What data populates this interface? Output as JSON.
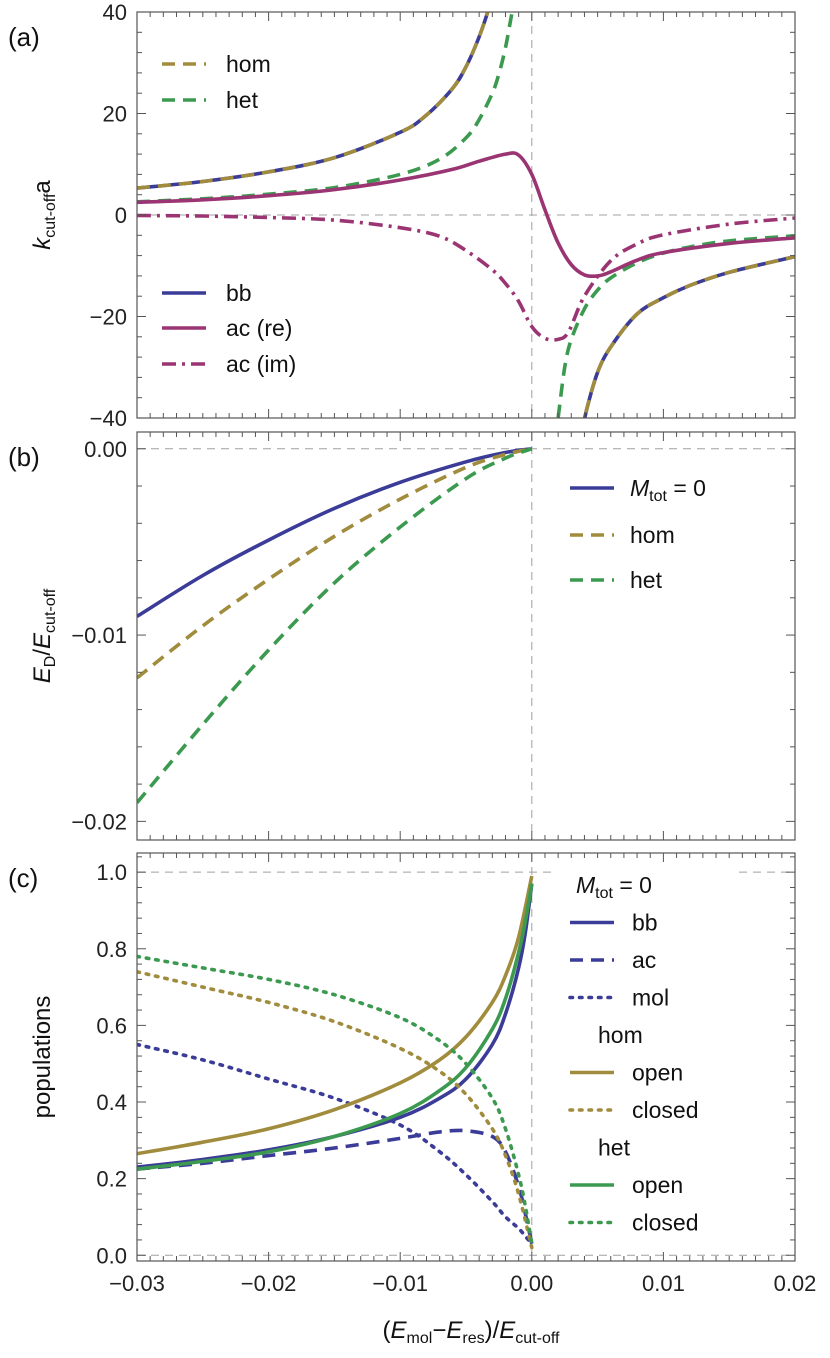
{
  "chart_data": [
    {
      "panel_label": "(a)",
      "type": "line",
      "ylabel": {
        "main": "k",
        "sub": "cut-off",
        "after": "a"
      },
      "xlim": [
        -0.03,
        0.02
      ],
      "ylim": [
        -40,
        40
      ],
      "yticks": [
        {
          "v": 40,
          "label": "40"
        },
        {
          "v": 20,
          "label": "20"
        },
        {
          "v": 0,
          "label": "0"
        },
        {
          "v": -20,
          "label": "−20"
        },
        {
          "v": -40,
          "label": "−40"
        }
      ],
      "ref_lines": {
        "x": 0,
        "y": 0
      },
      "legend": [
        {
          "label": "hom",
          "color": "#a08c3c",
          "dash": "dash"
        },
        {
          "label": "het",
          "color": "#3c9a50",
          "dash": "dash"
        },
        {
          "label": "bb",
          "color": "#3b3b98",
          "dash": "solid"
        },
        {
          "label": "ac (re)",
          "color": "#9b3472",
          "dash": "solid"
        },
        {
          "label": "ac (im)",
          "color": "#9b3472",
          "dash": "dashdot"
        }
      ],
      "series": [
        {
          "key": "bb",
          "color": "#3b3b98",
          "dash": "solid",
          "x": [
            -0.03,
            -0.025,
            -0.02,
            -0.015,
            -0.01,
            -0.008,
            -0.006,
            -0.005,
            -0.0042,
            -0.0036,
            -0.003
          ],
          "y": [
            5.3,
            6.6,
            8.5,
            11.3,
            16.3,
            19.7,
            25.0,
            29.2,
            33.8,
            38.0,
            43.0
          ]
        },
        {
          "key": "bb_pos",
          "color": "#3b3b98",
          "dash": "solid",
          "x": [
            0.0038,
            0.0042,
            0.005,
            0.006,
            0.008,
            0.01,
            0.012,
            0.015,
            0.02
          ],
          "y": [
            -43.0,
            -38.0,
            -31.0,
            -26.0,
            -19.5,
            -16.3,
            -13.9,
            -11.3,
            -8.2
          ]
        },
        {
          "key": "hom",
          "color": "#a08c3c",
          "dash": "dash",
          "x": [
            -0.03,
            -0.025,
            -0.02,
            -0.015,
            -0.01,
            -0.008,
            -0.006,
            -0.005,
            -0.0042,
            -0.0036,
            -0.003
          ],
          "y": [
            5.3,
            6.6,
            8.5,
            11.3,
            16.3,
            19.7,
            25.0,
            29.2,
            33.8,
            38.0,
            43.0
          ]
        },
        {
          "key": "hom_pos",
          "color": "#a08c3c",
          "dash": "dash",
          "x": [
            0.0038,
            0.0042,
            0.005,
            0.006,
            0.008,
            0.01,
            0.012,
            0.015,
            0.02
          ],
          "y": [
            -43.0,
            -38.0,
            -31.0,
            -26.0,
            -19.5,
            -16.3,
            -13.9,
            -11.3,
            -8.2
          ]
        },
        {
          "key": "het",
          "color": "#3c9a50",
          "dash": "dash",
          "x": [
            -0.03,
            -0.025,
            -0.02,
            -0.015,
            -0.01,
            -0.007,
            -0.005,
            -0.004,
            -0.003,
            -0.0025,
            -0.002,
            -0.0015,
            -0.0012
          ],
          "y": [
            2.6,
            3.2,
            4.1,
            5.4,
            8.0,
            11.0,
            15.2,
            18.8,
            24.0,
            27.8,
            33.0,
            40.0,
            44.0
          ]
        },
        {
          "key": "het_pos",
          "color": "#3c9a50",
          "dash": "dash",
          "x": [
            0.0018,
            0.002,
            0.0025,
            0.003,
            0.004,
            0.005,
            0.006,
            0.008,
            0.01,
            0.012,
            0.015,
            0.02
          ],
          "y": [
            -44.0,
            -40.0,
            -30.0,
            -24.5,
            -18.5,
            -14.8,
            -12.4,
            -9.4,
            -7.5,
            -6.3,
            -5.1,
            -4.1
          ]
        },
        {
          "key": "ac_re",
          "color": "#9b3472",
          "dash": "solid",
          "x": [
            -0.03,
            -0.025,
            -0.02,
            -0.015,
            -0.01,
            -0.006,
            -0.004,
            -0.002,
            -0.001,
            0.0,
            0.001,
            0.002,
            0.003,
            0.004,
            0.005,
            0.006,
            0.008,
            0.01,
            0.015,
            0.02
          ],
          "y": [
            2.5,
            3.0,
            3.8,
            5.0,
            6.9,
            9.0,
            10.6,
            12.0,
            11.8,
            8.0,
            1.0,
            -5.5,
            -9.8,
            -11.8,
            -12.0,
            -11.2,
            -8.9,
            -7.4,
            -5.6,
            -4.5
          ]
        },
        {
          "key": "ac_im",
          "color": "#9b3472",
          "dash": "dashdot",
          "x": [
            -0.03,
            -0.025,
            -0.02,
            -0.015,
            -0.01,
            -0.007,
            -0.005,
            -0.003,
            -0.002,
            -0.001,
            0.0,
            0.001,
            0.002,
            0.0028,
            0.004,
            0.006,
            0.008,
            0.01,
            0.015,
            0.02
          ],
          "y": [
            -0.1,
            -0.2,
            -0.5,
            -1.0,
            -2.5,
            -4.2,
            -7.0,
            -10.8,
            -13.5,
            -17.0,
            -22.0,
            -24.3,
            -24.5,
            -23.0,
            -16.0,
            -9.0,
            -5.7,
            -3.9,
            -1.8,
            -0.6
          ]
        }
      ]
    },
    {
      "panel_label": "(b)",
      "type": "line",
      "ylabel": {
        "main": "E",
        "sub": "D",
        "after": "/E",
        "sub2": "cut-off"
      },
      "xlim": [
        -0.03,
        0.02
      ],
      "ylim": [
        -0.021,
        0.0009
      ],
      "yticks": [
        {
          "v": 0.0,
          "label": "0.00"
        },
        {
          "v": -0.01,
          "label": "−0.01"
        },
        {
          "v": -0.02,
          "label": "−0.02"
        }
      ],
      "ref_lines": {
        "x": 0,
        "y": 0
      },
      "legend": [
        {
          "label": "M",
          "sub": "tot",
          "suffix": " = 0",
          "color": "#3b3b98",
          "dash": "solid"
        },
        {
          "label": "hom",
          "color": "#a08c3c",
          "dash": "dash"
        },
        {
          "label": "het",
          "color": "#3c9a50",
          "dash": "dash"
        }
      ],
      "series": [
        {
          "key": "bb",
          "color": "#3b3b98",
          "dash": "solid",
          "x": [
            -0.03,
            -0.025,
            -0.02,
            -0.015,
            -0.01,
            -0.005,
            -0.002,
            0.0
          ],
          "y": [
            -0.009,
            -0.0068,
            -0.0049,
            -0.0032,
            -0.0018,
            -0.0007,
            -0.0002,
            0.0
          ]
        },
        {
          "key": "hom",
          "color": "#a08c3c",
          "dash": "dash",
          "x": [
            -0.03,
            -0.025,
            -0.02,
            -0.015,
            -0.01,
            -0.005,
            -0.002,
            0.0
          ],
          "y": [
            -0.0123,
            -0.0095,
            -0.007,
            -0.0047,
            -0.0027,
            -0.001,
            -0.0003,
            0.0
          ]
        },
        {
          "key": "het",
          "color": "#3c9a50",
          "dash": "dash",
          "x": [
            -0.03,
            -0.025,
            -0.02,
            -0.015,
            -0.01,
            -0.005,
            -0.002,
            0.0
          ],
          "y": [
            -0.019,
            -0.0148,
            -0.0108,
            -0.0072,
            -0.0042,
            -0.0016,
            -0.0005,
            0.0
          ]
        }
      ]
    },
    {
      "panel_label": "(c)",
      "type": "line",
      "ylabel": {
        "main": "populations"
      },
      "xlabel": {
        "a": "(E",
        "sub1": "mol",
        "b": "−E",
        "sub2": "res",
        "c": ")/E",
        "sub3": "cut-off"
      },
      "xlim": [
        -0.03,
        0.02
      ],
      "ylim": [
        -0.015,
        1.05
      ],
      "xticks": [
        {
          "v": -0.03,
          "label": "−0.03"
        },
        {
          "v": -0.02,
          "label": "−0.02"
        },
        {
          "v": -0.01,
          "label": "−0.01"
        },
        {
          "v": 0.0,
          "label": "0.00"
        },
        {
          "v": 0.01,
          "label": "0.01"
        },
        {
          "v": 0.02,
          "label": "0.02"
        }
      ],
      "yticks": [
        {
          "v": 0.0,
          "label": "0.0"
        },
        {
          "v": 0.2,
          "label": "0.2"
        },
        {
          "v": 0.4,
          "label": "0.4"
        },
        {
          "v": 0.6,
          "label": "0.6"
        },
        {
          "v": 0.8,
          "label": "0.8"
        },
        {
          "v": 1.0,
          "label": "1.0"
        }
      ],
      "ref_lines": {
        "x": 0,
        "y0": 0,
        "y1": 1
      },
      "legend": [
        {
          "heading": true,
          "label": "M",
          "sub": "tot",
          "suffix": " = 0",
          "color": "#3b3b98"
        },
        {
          "label": "bb",
          "color": "#3b3b98",
          "dash": "solid"
        },
        {
          "label": "ac",
          "color": "#3b3b98",
          "dash": "dash"
        },
        {
          "label": "mol",
          "color": "#3b3b98",
          "dash": "dot"
        },
        {
          "heading": true,
          "label": "hom",
          "color": "#a08c3c"
        },
        {
          "label": "open",
          "color": "#a08c3c",
          "dash": "solid"
        },
        {
          "label": "closed",
          "color": "#a08c3c",
          "dash": "dot"
        },
        {
          "heading": true,
          "label": "het",
          "color": "#3c9a50"
        },
        {
          "label": "open",
          "color": "#3c9a50",
          "dash": "solid"
        },
        {
          "label": "closed",
          "color": "#3c9a50",
          "dash": "dot"
        }
      ],
      "series": [
        {
          "key": "mtot_bb",
          "color": "#3b3b98",
          "dash": "solid",
          "x": [
            -0.03,
            -0.025,
            -0.02,
            -0.015,
            -0.01,
            -0.007,
            -0.005,
            -0.003,
            -0.002,
            -0.001,
            -0.0005,
            0.0
          ],
          "y": [
            0.23,
            0.25,
            0.275,
            0.31,
            0.36,
            0.41,
            0.46,
            0.55,
            0.63,
            0.75,
            0.84,
            0.97
          ]
        },
        {
          "key": "mtot_ac",
          "color": "#3b3b98",
          "dash": "dash",
          "x": [
            -0.03,
            -0.025,
            -0.02,
            -0.015,
            -0.01,
            -0.007,
            -0.005,
            -0.003,
            -0.002,
            -0.001,
            -0.0005,
            0.0
          ],
          "y": [
            0.225,
            0.24,
            0.26,
            0.28,
            0.305,
            0.322,
            0.325,
            0.31,
            0.27,
            0.18,
            0.11,
            0.03
          ]
        },
        {
          "key": "mtot_mol",
          "color": "#3b3b98",
          "dash": "dot",
          "x": [
            -0.03,
            -0.025,
            -0.02,
            -0.015,
            -0.01,
            -0.007,
            -0.005,
            -0.003,
            -0.002,
            -0.001,
            -0.0005,
            0.0
          ],
          "y": [
            0.55,
            0.51,
            0.46,
            0.41,
            0.34,
            0.27,
            0.21,
            0.14,
            0.1,
            0.07,
            0.05,
            0.03
          ]
        },
        {
          "key": "hom_open",
          "color": "#a08c3c",
          "dash": "solid",
          "x": [
            -0.03,
            -0.025,
            -0.02,
            -0.015,
            -0.01,
            -0.007,
            -0.005,
            -0.003,
            -0.002,
            -0.001,
            0.0
          ],
          "y": [
            0.265,
            0.295,
            0.33,
            0.38,
            0.45,
            0.51,
            0.57,
            0.66,
            0.73,
            0.83,
            0.99
          ]
        },
        {
          "key": "hom_closed",
          "color": "#a08c3c",
          "dash": "dot",
          "x": [
            -0.03,
            -0.025,
            -0.02,
            -0.015,
            -0.01,
            -0.007,
            -0.005,
            -0.003,
            -0.002,
            -0.001,
            0.0
          ],
          "y": [
            0.74,
            0.7,
            0.66,
            0.61,
            0.54,
            0.48,
            0.42,
            0.33,
            0.26,
            0.16,
            0.02
          ]
        },
        {
          "key": "het_open",
          "color": "#3c9a50",
          "dash": "solid",
          "x": [
            -0.03,
            -0.025,
            -0.02,
            -0.015,
            -0.01,
            -0.007,
            -0.005,
            -0.003,
            -0.002,
            -0.001,
            -0.0005,
            0.0
          ],
          "y": [
            0.225,
            0.245,
            0.27,
            0.31,
            0.37,
            0.43,
            0.49,
            0.59,
            0.67,
            0.79,
            0.87,
            0.97
          ]
        },
        {
          "key": "het_closed",
          "color": "#3c9a50",
          "dash": "dot",
          "x": [
            -0.03,
            -0.025,
            -0.02,
            -0.015,
            -0.01,
            -0.007,
            -0.005,
            -0.003,
            -0.002,
            -0.001,
            -0.0005,
            0.0
          ],
          "y": [
            0.78,
            0.75,
            0.72,
            0.68,
            0.62,
            0.56,
            0.5,
            0.41,
            0.33,
            0.21,
            0.13,
            0.03
          ]
        }
      ]
    }
  ]
}
